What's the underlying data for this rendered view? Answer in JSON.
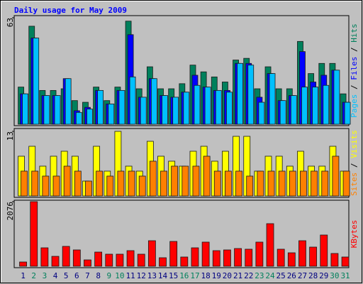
{
  "title": "Daily usage for May 2009",
  "legend_separator": " / ",
  "chart_data": [
    {
      "type": "bar",
      "ylim": [
        0,
        63
      ],
      "yticks": [
        63
      ],
      "series": [
        {
          "name": "Hits",
          "color": "#00805c",
          "values": [
            22,
            58,
            20,
            20,
            21,
            14,
            13,
            22,
            14,
            22,
            61,
            21,
            34,
            21,
            21,
            24,
            35,
            31,
            28,
            25,
            38,
            39,
            21,
            34,
            21,
            21,
            49,
            30,
            36,
            36,
            18
          ]
        },
        {
          "name": "Files",
          "color": "#0000ff",
          "values": [
            18,
            51,
            17,
            17,
            27,
            8,
            10,
            20,
            12,
            20,
            53,
            16,
            27,
            17,
            16,
            19,
            29,
            22,
            20,
            20,
            36,
            36,
            16,
            30,
            14,
            17,
            43,
            25,
            29,
            32,
            13
          ]
        },
        {
          "name": "Pages",
          "color": "#00c0ff",
          "values": [
            18,
            51,
            17,
            17,
            27,
            7,
            9,
            20,
            12,
            20,
            28,
            16,
            27,
            17,
            16,
            19,
            23,
            22,
            20,
            19,
            36,
            35,
            13,
            30,
            14,
            17,
            22,
            22,
            23,
            32,
            13
          ]
        }
      ]
    },
    {
      "type": "bar",
      "ylim": [
        0,
        13
      ],
      "yticks": [
        13
      ],
      "series": [
        {
          "name": "Visits",
          "color": "#ffff00",
          "values": [
            8,
            10,
            6,
            8,
            9,
            8,
            3,
            10,
            5,
            13,
            6,
            5,
            11,
            8,
            7,
            6,
            9,
            10,
            7,
            9,
            12,
            12,
            5,
            8,
            8,
            6,
            9,
            6,
            6,
            10,
            5
          ]
        },
        {
          "name": "Sites",
          "color": "#ff8000",
          "values": [
            5,
            5,
            4,
            4,
            6,
            5,
            3,
            5,
            4,
            5,
            5,
            4,
            7,
            5,
            6,
            6,
            6,
            8,
            5,
            5,
            5,
            4,
            5,
            5,
            5,
            5,
            5,
            5,
            5,
            8,
            5
          ]
        }
      ]
    },
    {
      "type": "bar",
      "ylim": [
        0,
        2076
      ],
      "yticks": [
        2076
      ],
      "categories": [
        "1",
        "2",
        "3",
        "4",
        "5",
        "6",
        "7",
        "8",
        "9",
        "10",
        "11",
        "12",
        "13",
        "14",
        "15",
        "16",
        "17",
        "18",
        "19",
        "20",
        "21",
        "22",
        "23",
        "24",
        "25",
        "26",
        "27",
        "28",
        "29",
        "30",
        "31"
      ],
      "category_colors": [
        "#000080",
        "#00805c",
        "#00805c",
        "#000080",
        "#000080",
        "#000080",
        "#000080",
        "#000080",
        "#00805c",
        "#00805c",
        "#000080",
        "#000080",
        "#000080",
        "#000080",
        "#000080",
        "#00805c",
        "#00805c",
        "#000080",
        "#000080",
        "#000080",
        "#000080",
        "#000080",
        "#00805c",
        "#00805c",
        "#000080",
        "#000080",
        "#000080",
        "#000080",
        "#000080",
        "#00805c",
        "#00805c"
      ],
      "series": [
        {
          "name": "KBytes",
          "color": "#ff0000",
          "values": [
            137,
            2076,
            593,
            319,
            639,
            525,
            205,
            456,
            388,
            388,
            502,
            388,
            821,
            274,
            798,
            297,
            593,
            776,
            502,
            525,
            570,
            548,
            776,
            1369,
            548,
            433,
            821,
            616,
            1004,
            411,
            297
          ]
        }
      ]
    }
  ]
}
